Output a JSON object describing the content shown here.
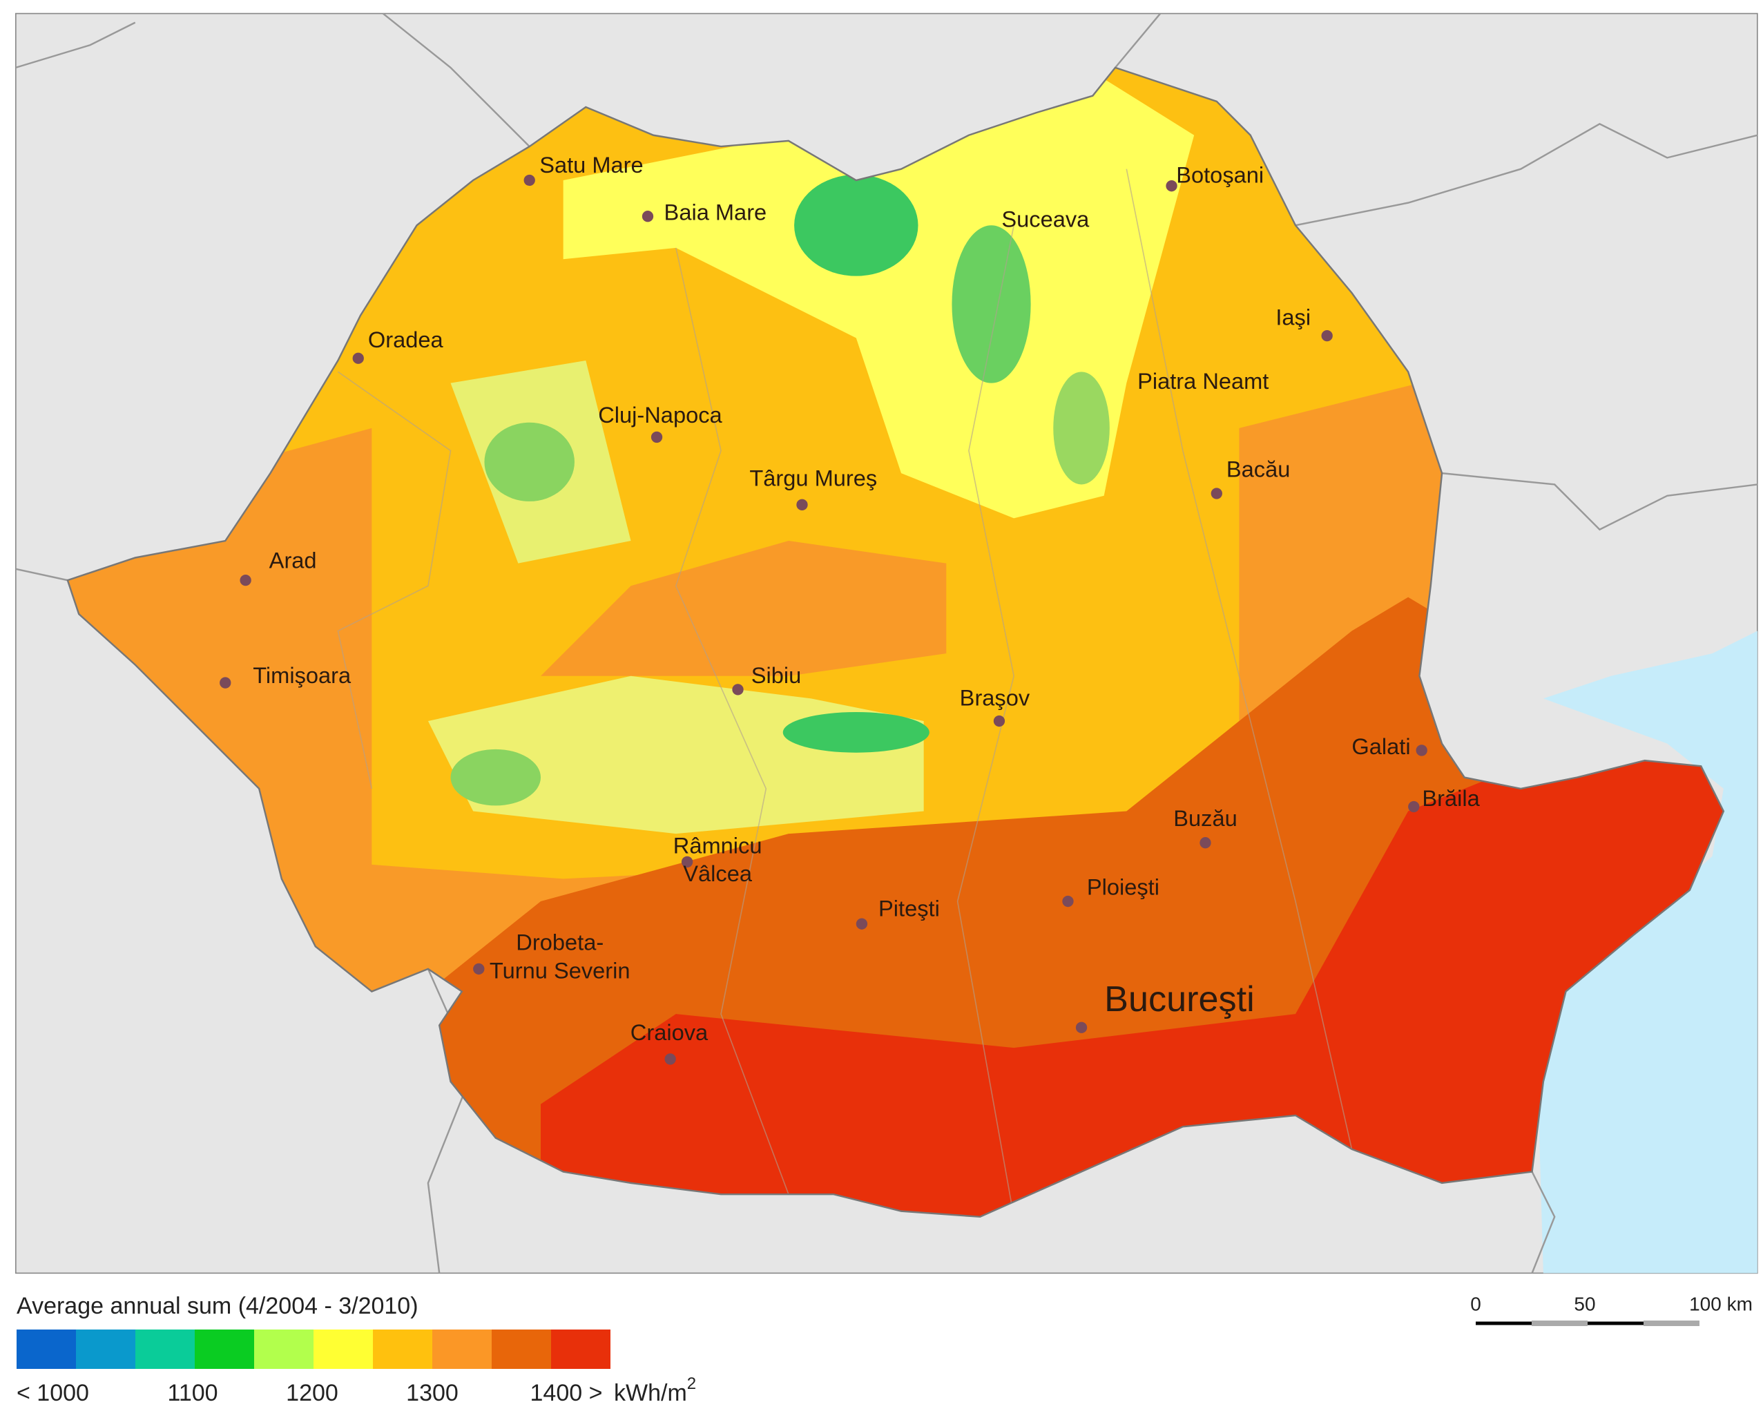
{
  "cities": [
    {
      "lines": [
        "Satu Mare"
      ]
    },
    {
      "lines": [
        "Baia Mare"
      ]
    },
    {
      "lines": [
        "Suceava"
      ]
    },
    {
      "lines": [
        "Botoşani"
      ]
    },
    {
      "lines": [
        "Iaşi"
      ]
    },
    {
      "lines": [
        "Oradea"
      ]
    },
    {
      "lines": [
        "Piatra Neamt"
      ]
    },
    {
      "lines": [
        "Cluj-Napoca"
      ]
    },
    {
      "lines": [
        "Târgu Mureş"
      ]
    },
    {
      "lines": [
        "Bacău"
      ]
    },
    {
      "lines": [
        "Arad"
      ]
    },
    {
      "lines": [
        "Timişoara"
      ]
    },
    {
      "lines": [
        "Sibiu"
      ]
    },
    {
      "lines": [
        "Braşov"
      ]
    },
    {
      "lines": [
        "Galati"
      ]
    },
    {
      "lines": [
        "Brăila"
      ]
    },
    {
      "lines": [
        "Buzău"
      ]
    },
    {
      "lines": [
        "Râmnicu",
        "Vâlcea"
      ]
    },
    {
      "lines": [
        "Ploieşti"
      ]
    },
    {
      "lines": [
        "Piteşti"
      ]
    },
    {
      "lines": [
        "Drobeta-",
        "Turnu Severin"
      ]
    },
    {
      "lines": [
        "Bucureşti"
      ]
    },
    {
      "lines": [
        "Craiova"
      ]
    }
  ],
  "legend": {
    "title": "Average annual sum (4/2004 - 3/2010)",
    "colors": [
      "#0a66cc",
      "#0a99cc",
      "#0acc99",
      "#0acc22",
      "#b2ff4c",
      "#ffff33",
      "#ffc10e",
      "#fb9726",
      "#e8660a",
      "#e8300a"
    ],
    "labels": [
      "< 1000",
      "1100",
      "1200",
      "1300",
      "1400 >"
    ],
    "unit": "kWh/m",
    "unit_exponent": "2"
  },
  "scale_bar": {
    "labels": [
      "0",
      "50",
      "100 km"
    ]
  }
}
